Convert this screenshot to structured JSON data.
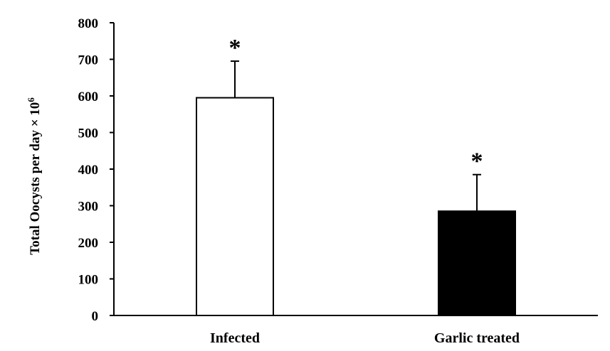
{
  "chart_data": {
    "type": "bar",
    "categories": [
      "Infected",
      "Garlic treated"
    ],
    "values": [
      595,
      285
    ],
    "errors": [
      100,
      100
    ],
    "bar_colors": [
      "#ffffff",
      "#000000"
    ],
    "annotations": [
      "*",
      "*"
    ],
    "ylabel": "Total Oocysts per day × 10",
    "ylabel_superscript": "6",
    "ylim": [
      0,
      800
    ],
    "yticks": [
      0,
      100,
      200,
      300,
      400,
      500,
      600,
      700,
      800
    ],
    "grid": false,
    "legend": "none"
  }
}
